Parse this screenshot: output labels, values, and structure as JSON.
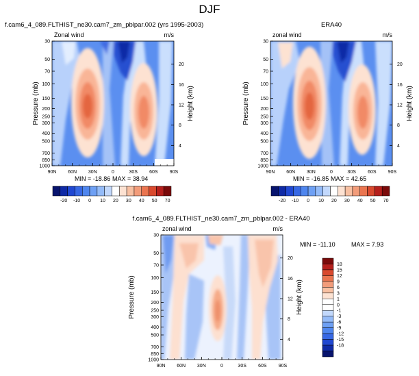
{
  "page": {
    "title": "DJF"
  },
  "colorbar": {
    "top_labels": [
      "-20",
      "-10",
      "0",
      "10",
      "20",
      "30",
      "40",
      "50",
      "70"
    ],
    "diff_labels": [
      "18",
      "15",
      "12",
      "9",
      "6",
      "3",
      "1",
      "0",
      "-1",
      "-3",
      "-6",
      "-9",
      "-12",
      "-15",
      "-18"
    ]
  },
  "chart_data": [
    {
      "type": "heatmap",
      "title": "f.cam6_4_089.FLTHIST_ne30.cam7_zm_pblpar.002 (yrs 1995-2003)",
      "field_label": "Zonal wind",
      "units": "m/s",
      "ylabel": "Pressure (mb)",
      "ylabel_right": "Height (km)",
      "x_ticks": [
        "90N",
        "60N",
        "30N",
        "0",
        "30S",
        "60S",
        "90S"
      ],
      "y_ticks": [
        "30",
        "50",
        "70",
        "100",
        "150",
        "200",
        "250",
        "300",
        "400",
        "500",
        "700",
        "850",
        "1000"
      ],
      "height_ticks": [
        "4",
        "8",
        "12",
        "16",
        "20"
      ],
      "min_label": "MIN = -18.86",
      "max_label": "MAX = 38.94",
      "min": -18.86,
      "max": 38.94,
      "colorbar_levels": [
        -20,
        -10,
        0,
        10,
        20,
        30,
        40,
        50,
        70
      ],
      "jets": [
        {
          "lat": 30,
          "pressure": 200,
          "peak": 38.94
        },
        {
          "lat": -45,
          "pressure": 200,
          "peak": 30
        }
      ]
    },
    {
      "type": "heatmap",
      "title": "ERA40",
      "field_label": "zonal wind",
      "units": "m/s",
      "ylabel": "Pressure (mb)",
      "ylabel_right": "Height (km)",
      "x_ticks": [
        "90N",
        "60N",
        "30N",
        "0",
        "30S",
        "60S",
        "90S"
      ],
      "y_ticks": [
        "30",
        "50",
        "70",
        "100",
        "150",
        "200",
        "250",
        "300",
        "400",
        "500",
        "700",
        "850",
        "1000"
      ],
      "height_ticks": [
        "4",
        "8",
        "12",
        "16",
        "20"
      ],
      "min_label": "MIN = -16.85",
      "max_label": "MAX = 42.65",
      "min": -16.85,
      "max": 42.65,
      "colorbar_levels": [
        -20,
        -10,
        0,
        10,
        20,
        30,
        40,
        50,
        70
      ],
      "jets": [
        {
          "lat": 30,
          "pressure": 200,
          "peak": 42.65
        },
        {
          "lat": -45,
          "pressure": 200,
          "peak": 32
        }
      ]
    },
    {
      "type": "heatmap",
      "title": "f.cam6_4_089.FLTHIST_ne30.cam7_zm_pblpar.002 - ERA40",
      "field_label": "zonal wind",
      "units": "m/s",
      "ylabel": "Pressure (mb)",
      "ylabel_right": "Height (km)",
      "x_ticks": [
        "90N",
        "60N",
        "30N",
        "0",
        "30S",
        "60S",
        "90S"
      ],
      "y_ticks": [
        "30",
        "50",
        "70",
        "100",
        "150",
        "200",
        "250",
        "300",
        "400",
        "500",
        "700",
        "850",
        "1000"
      ],
      "height_ticks": [
        "4",
        "8",
        "12",
        "16",
        "20"
      ],
      "min_label": "MIN = -11.10",
      "max_label": "MAX =   7.93",
      "min": -11.1,
      "max": 7.93,
      "colorbar_levels": [
        -18,
        -15,
        -12,
        -9,
        -6,
        -3,
        -1,
        0,
        1,
        3,
        6,
        9,
        12,
        15,
        18
      ]
    }
  ]
}
